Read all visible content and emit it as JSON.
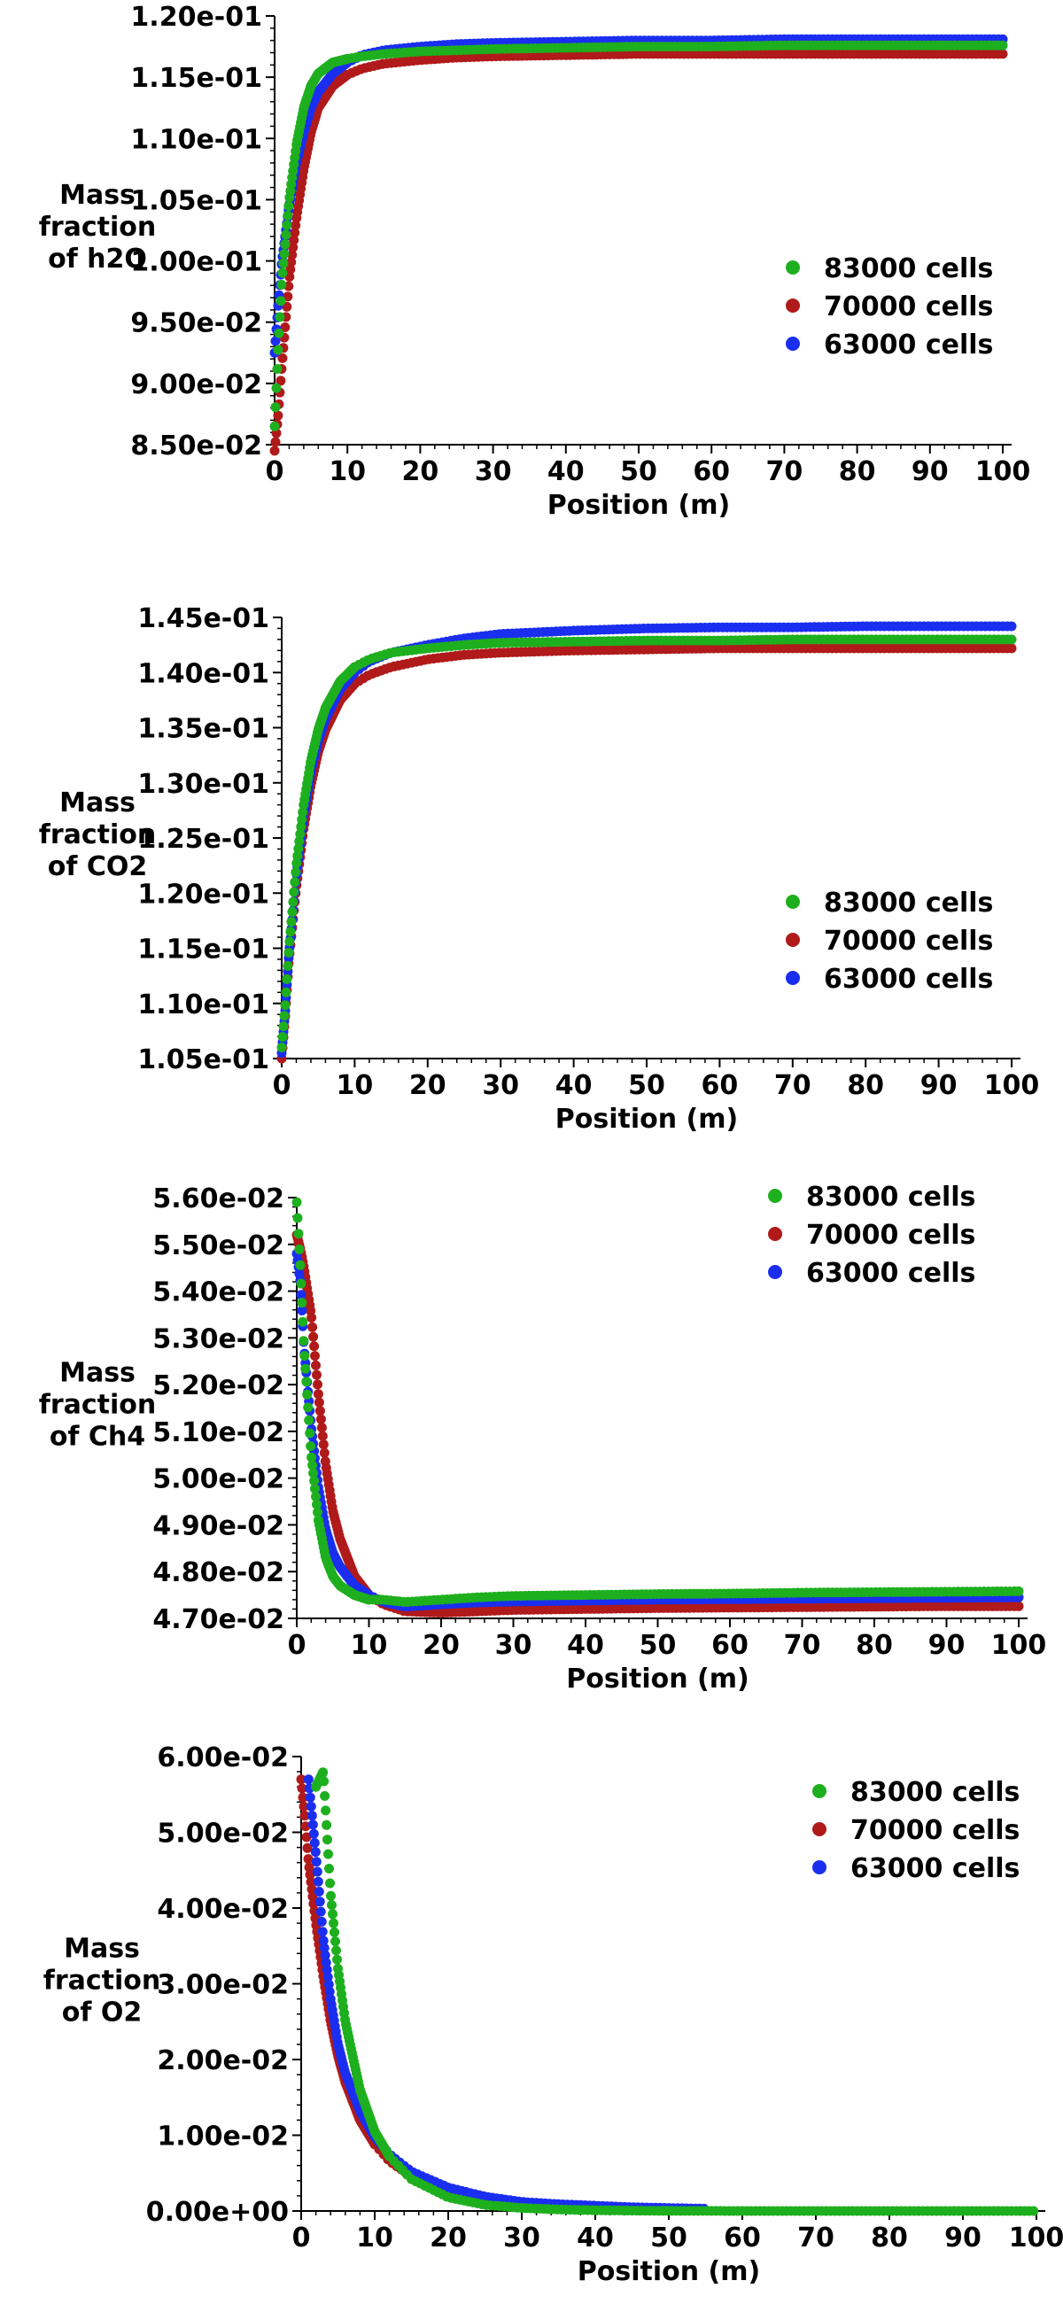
{
  "figure": {
    "legend": [
      "83000 cells",
      "70000 cells",
      "63000 cells"
    ],
    "colors": {
      "83000 cells": "#1eaf1e",
      "70000 cells": "#b01a1a",
      "63000 cells": "#1a2ef0"
    }
  },
  "chart_data": [
    {
      "type": "scatter",
      "title": "",
      "xlabel": "Position (m)",
      "ylabel": "Mass fraction of h2O",
      "ylabel_lines": [
        "Mass",
        "fraction",
        "of h2O"
      ],
      "xlim": [
        0,
        100
      ],
      "ylim": [
        0.085,
        0.12
      ],
      "x_ticks": [
        "0",
        "10",
        "20",
        "30",
        "40",
        "50",
        "60",
        "70",
        "80",
        "90",
        "100"
      ],
      "y_ticks": [
        "8.50e-02",
        "9.00e-02",
        "9.50e-02",
        "1.00e-01",
        "1.05e-01",
        "1.10e-01",
        "1.15e-01",
        "1.20e-01"
      ],
      "grid": false,
      "legend_position": "right",
      "x": [
        0,
        0.5,
        1,
        2,
        3,
        4,
        5,
        6,
        8,
        10,
        12,
        15,
        20,
        25,
        30,
        40,
        50,
        60,
        70,
        80,
        90,
        100
      ],
      "series": [
        {
          "name": "83000 cells",
          "color": "#1eaf1e",
          "values": [
            0.0865,
            0.093,
            0.0985,
            0.105,
            0.1095,
            0.1125,
            0.1143,
            0.1153,
            0.1162,
            0.1165,
            0.1167,
            0.1169,
            0.1171,
            0.1172,
            0.1173,
            0.1174,
            0.1175,
            0.1175,
            0.1176,
            0.1176,
            0.1176,
            0.1176
          ]
        },
        {
          "name": "70000 cells",
          "color": "#b01a1a",
          "values": [
            0.0845,
            0.0875,
            0.0915,
            0.0985,
            0.1035,
            0.1075,
            0.1105,
            0.1125,
            0.1143,
            0.1152,
            0.1157,
            0.1161,
            0.1164,
            0.1166,
            0.1167,
            0.1168,
            0.1169,
            0.1169,
            0.1169,
            0.1169,
            0.1169,
            0.1169
          ]
        },
        {
          "name": "63000 cells",
          "color": "#1a2ef0",
          "values": [
            0.0925,
            0.0965,
            0.1,
            0.1045,
            0.108,
            0.1105,
            0.1125,
            0.1138,
            0.1153,
            0.1162,
            0.1168,
            0.1172,
            0.1175,
            0.1177,
            0.1178,
            0.1179,
            0.118,
            0.118,
            0.1181,
            0.1181,
            0.1181,
            0.1181
          ]
        }
      ]
    },
    {
      "type": "scatter",
      "title": "",
      "xlabel": "Position (m)",
      "ylabel": "Mass fraction of CO2",
      "ylabel_lines": [
        "Mass",
        "fraction",
        "of CO2"
      ],
      "xlim": [
        0,
        100
      ],
      "ylim": [
        0.105,
        0.145
      ],
      "x_ticks": [
        "0",
        "10",
        "20",
        "30",
        "40",
        "50",
        "60",
        "70",
        "80",
        "90",
        "100"
      ],
      "y_ticks": [
        "1.05e-01",
        "1.10e-01",
        "1.15e-01",
        "1.20e-01",
        "1.25e-01",
        "1.30e-01",
        "1.35e-01",
        "1.40e-01",
        "1.45e-01"
      ],
      "grid": false,
      "legend_position": "right",
      "x": [
        0,
        0.5,
        1,
        2,
        3,
        4,
        5,
        6,
        8,
        10,
        12,
        15,
        20,
        25,
        30,
        40,
        50,
        60,
        70,
        80,
        90,
        100
      ],
      "series": [
        {
          "name": "83000 cells",
          "color": "#1eaf1e",
          "values": [
            0.106,
            0.11,
            0.115,
            0.1225,
            0.128,
            0.132,
            0.1348,
            0.1368,
            0.1392,
            0.1405,
            0.1412,
            0.1418,
            0.1422,
            0.1425,
            0.1427,
            0.1428,
            0.1429,
            0.1429,
            0.143,
            0.143,
            0.143,
            0.143
          ]
        },
        {
          "name": "70000 cells",
          "color": "#b01a1a",
          "values": [
            0.105,
            0.109,
            0.114,
            0.1205,
            0.1258,
            0.1298,
            0.1328,
            0.1348,
            0.1375,
            0.139,
            0.1398,
            0.1405,
            0.1412,
            0.1416,
            0.1418,
            0.142,
            0.1421,
            0.1422,
            0.1422,
            0.1422,
            0.1422,
            0.1422
          ]
        },
        {
          "name": "63000 cells",
          "color": "#1a2ef0",
          "values": [
            0.1055,
            0.1095,
            0.1145,
            0.1215,
            0.127,
            0.131,
            0.1338,
            0.1358,
            0.1385,
            0.14,
            0.141,
            0.1418,
            0.1425,
            0.1431,
            0.1435,
            0.1438,
            0.144,
            0.1441,
            0.1441,
            0.1442,
            0.1442,
            0.1442
          ]
        }
      ]
    },
    {
      "type": "scatter",
      "title": "",
      "xlabel": "Position (m)",
      "ylabel": "Mass fraction of Ch4",
      "ylabel_lines": [
        "Mass",
        "fraction",
        "of Ch4"
      ],
      "xlim": [
        0,
        100
      ],
      "ylim": [
        0.047,
        0.056
      ],
      "x_ticks": [
        "0",
        "10",
        "20",
        "30",
        "40",
        "50",
        "60",
        "70",
        "80",
        "90",
        "100"
      ],
      "y_ticks": [
        "4.70e-02",
        "4.80e-02",
        "4.90e-02",
        "5.00e-02",
        "5.10e-02",
        "5.20e-02",
        "5.30e-02",
        "5.40e-02",
        "5.50e-02",
        "5.60e-02"
      ],
      "grid": false,
      "legend_position": "top-right",
      "x": [
        0,
        0.5,
        1,
        2,
        3,
        4,
        5,
        6,
        8,
        10,
        12,
        15,
        20,
        25,
        30,
        40,
        50,
        60,
        70,
        80,
        90,
        100
      ],
      "series": [
        {
          "name": "83000 cells",
          "color": "#1eaf1e",
          "values": [
            0.0559,
            0.0545,
            0.0528,
            0.0505,
            0.0491,
            0.0483,
            0.0479,
            0.0477,
            0.0475,
            0.0474,
            0.0474,
            0.04735,
            0.0474,
            0.04745,
            0.04748,
            0.0475,
            0.04752,
            0.04753,
            0.04755,
            0.04756,
            0.04757,
            0.04758
          ]
        },
        {
          "name": "70000 cells",
          "color": "#b01a1a",
          "values": [
            0.0552,
            0.0549,
            0.0545,
            0.0535,
            0.0518,
            0.0503,
            0.0493,
            0.0487,
            0.0479,
            0.0475,
            0.0473,
            0.04715,
            0.04712,
            0.04715,
            0.04718,
            0.0472,
            0.04722,
            0.04723,
            0.04724,
            0.04725,
            0.04726,
            0.04726
          ]
        },
        {
          "name": "63000 cells",
          "color": "#1a2ef0",
          "values": [
            0.0548,
            0.0542,
            0.0528,
            0.0511,
            0.0498,
            0.0489,
            0.0484,
            0.0481,
            0.0477,
            0.0475,
            0.04735,
            0.04725,
            0.0473,
            0.04734,
            0.04736,
            0.04738,
            0.0474,
            0.04741,
            0.04742,
            0.04743,
            0.04744,
            0.04745
          ]
        }
      ]
    },
    {
      "type": "scatter",
      "title": "",
      "xlabel": "Position (m)",
      "ylabel": "Mass fraction of O2",
      "ylabel_lines": [
        "Mass",
        "fraction",
        "of O2"
      ],
      "xlim": [
        0,
        100
      ],
      "ylim": [
        0,
        0.06
      ],
      "x_ticks": [
        "0",
        "10",
        "20",
        "30",
        "40",
        "50",
        "60",
        "70",
        "80",
        "90",
        "100"
      ],
      "y_ticks": [
        "0.00e+00",
        "1.00e-02",
        "2.00e-02",
        "3.00e-02",
        "4.00e-02",
        "5.00e-02",
        "6.00e-02"
      ],
      "grid": false,
      "legend_position": "top-right",
      "x": [
        0,
        0.5,
        1,
        2,
        3,
        4,
        5,
        6,
        8,
        10,
        12,
        15,
        20,
        25,
        30,
        35,
        40,
        45,
        50,
        55,
        60,
        70,
        80,
        90,
        100
      ],
      "series": [
        {
          "name": "83000 cells",
          "color": "#1eaf1e",
          "values": [
            null,
            null,
            null,
            0.056,
            0.058,
            0.042,
            0.032,
            0.025,
            0.016,
            0.0105,
            0.0072,
            0.0042,
            0.0018,
            0.0008,
            0.0004,
            0.0002,
            0.0001,
            5e-05,
            2e-05,
            1e-05,
            0.0,
            0.0,
            0.0,
            0.0,
            0.0
          ]
        },
        {
          "name": "70000 cells",
          "color": "#b01a1a",
          "values": [
            0.057,
            0.052,
            0.046,
            0.038,
            0.031,
            0.025,
            0.0205,
            0.017,
            0.012,
            0.0088,
            0.0066,
            0.0045,
            0.0025,
            0.0016,
            0.0011,
            0.0008,
            0.0006,
            0.0004,
            0.0003,
            null,
            null,
            null,
            null,
            null,
            null
          ]
        },
        {
          "name": "63000 cells",
          "color": "#1a2ef0",
          "values": [
            null,
            null,
            0.057,
            0.047,
            0.036,
            0.028,
            0.022,
            0.0182,
            0.0132,
            0.0098,
            0.0075,
            0.0052,
            0.0031,
            0.0019,
            0.0012,
            0.0009,
            0.0007,
            0.0005,
            0.0004,
            0.0003,
            null,
            null,
            null,
            null,
            null
          ]
        }
      ]
    }
  ]
}
